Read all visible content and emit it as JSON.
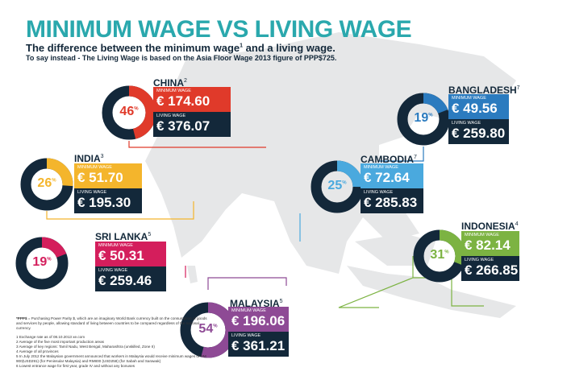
{
  "header": {
    "title": "MINIMUM WAGE VS LIVING WAGE",
    "subtitle": "The difference between the minimum wage",
    "subtitle_sup": "1",
    "subtitle_end": " and a living wage.",
    "note": "To say instead - The Living Wage is based on the Asia Floor Wage 2013 figure of PPP$725."
  },
  "labels": {
    "minimum": "MINIMUM WAGE",
    "living": "LIVING WAGE",
    "percent_sign": "%"
  },
  "countries": [
    {
      "name": "CHINA",
      "note": "2",
      "min": "€ 174.60",
      "living": "€ 376.07",
      "percent": 46,
      "color": "#e03a2a"
    },
    {
      "name": "INDIA",
      "note": "3",
      "min": "€ 51.70",
      "living": "€ 195.30",
      "percent": 26,
      "color": "#f4b52c"
    },
    {
      "name": "SRI LANKA",
      "note": "5",
      "min": "€ 50.31",
      "living": "€ 259.46",
      "percent": 19,
      "color": "#d41e5c"
    },
    {
      "name": "MALAYSIA",
      "note": "5",
      "min": "€ 196.06",
      "living": "€ 361.21",
      "percent": 54,
      "color": "#8e4a95"
    },
    {
      "name": "CAMBODIA",
      "note": "7",
      "min": "€ 72.64",
      "living": "€ 285.83",
      "percent": 25,
      "color": "#4aa9de"
    },
    {
      "name": "BANGLADESH",
      "note": "7",
      "min": "€ 49.56",
      "living": "€ 259.80",
      "percent": 19,
      "color": "#2b7bbf"
    },
    {
      "name": "INDONESIA",
      "note": "4",
      "min": "€ 82.14",
      "living": "€ 266.85",
      "percent": 31,
      "color": "#7cb342"
    }
  ],
  "footnotes": {
    "ppp_key": "*PPP$",
    "ppp_text": " = Purchasing Power Parity $, which are an imaginary World Bank currency built on the consumption of goods and services by people, allowing standard of living between countries to be compared regardless of the national currency.",
    "items": [
      "1 Exchange rate as of 08.10.2013 xe.com",
      "2 Average of the five most important production areas",
      "3 Average of key regions: Tamil Nadu, West Bengal, Maharashtra (unskilled, Zone II)",
      "4 Average of all provinces",
      "5 In July 2012 the Malaysian government announced that workers in Malaysia would receive minimum wages of RM 900(USD291) (for Peninsular Malaysia) and RM800 (USD258) (for Sabah and Sarawak)",
      "6 Lowest entrance wage for first year, grade IV and without any bonuses"
    ]
  },
  "colors": {
    "title": "#2aa8ad",
    "navy": "#13283a",
    "map": "#e6e7e8"
  }
}
